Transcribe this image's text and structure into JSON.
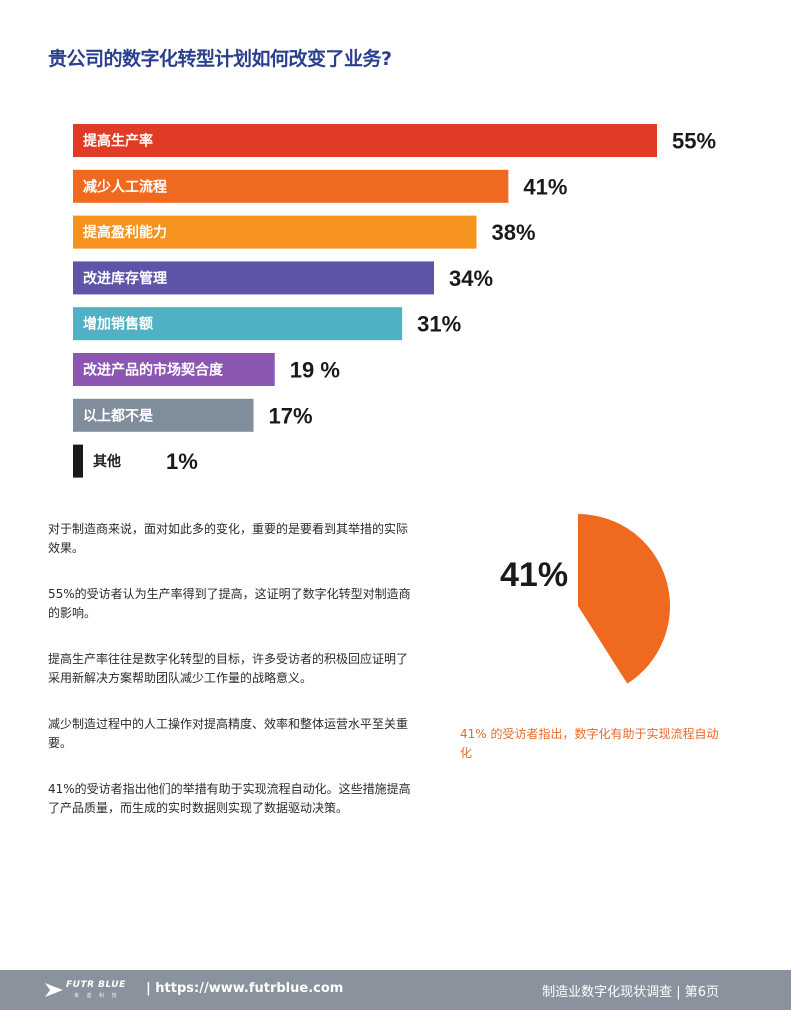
{
  "page": {
    "title": "贵公司的数字化转型计划如何改变了业务?"
  },
  "chart_data": [
    {
      "type": "bar",
      "orientation": "horizontal",
      "categories": [
        "提高生产率",
        "减少人工流程",
        "提高盈利能力",
        "改进库存管理",
        "增加销售额",
        "改进产品的市场契合度",
        "以上都不是",
        "其他"
      ],
      "values": [
        55,
        41,
        38,
        34,
        31,
        19,
        17,
        1
      ],
      "value_labels": [
        "55%",
        "41%",
        "38%",
        "34%",
        "31%",
        "19 %",
        "17%",
        "1%"
      ],
      "colors": [
        "#e03b24",
        "#ef6a1f",
        "#f6921e",
        "#5f55a8",
        "#4fb1c3",
        "#8c57b3",
        "#808d9b",
        "#1a1a1a"
      ],
      "xlim": [
        0,
        55
      ],
      "grid": false,
      "legend": "none"
    },
    {
      "type": "pie",
      "values": [
        41
      ],
      "value_label": "41%",
      "color": "#ef6a1f",
      "caption": "41% 的受访者指出，数字化有助于实现流程自动化"
    }
  ],
  "body": {
    "paragraphs": [
      "对于制造商来说，面对如此多的变化，重要的是要看到其举措的实际效果。",
      "55%的受访者认为生产率得到了提高，这证明了数字化转型对制造商的影响。",
      "提高生产率往往是数字化转型的目标，许多受访者的积极回应证明了采用新解决方案帮助团队减少工作量的战略意义。",
      "减少制造过程中的人工操作对提高精度、效率和整体运营水平至关重要。",
      "41%的受访者指出他们的举措有助于实现流程自动化。这些措施提高了产品质量，而生成的实时数据则实现了数据驱动决策。"
    ]
  },
  "footer": {
    "logo_text": "FUTR BLUE",
    "logo_sub": "未 蓝 科 技",
    "url": "| https://www.futrblue.com",
    "report_title": "制造业数字化现状调查 | 第6页"
  }
}
